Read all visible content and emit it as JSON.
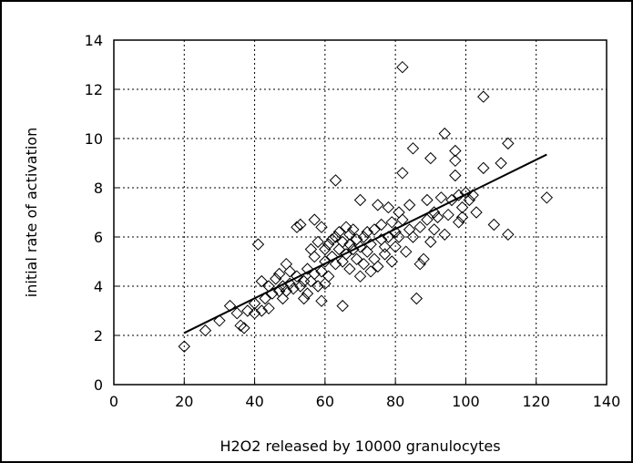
{
  "chart_data": {
    "type": "scatter",
    "title": "",
    "xlabel": "H2O2 released by 10000 granulocytes",
    "ylabel": "initial rate of activation",
    "xlim": [
      0,
      140
    ],
    "ylim": [
      0,
      14
    ],
    "xticks": [
      "0",
      "20",
      "40",
      "60",
      "80",
      "100",
      "120",
      "140"
    ],
    "yticks": [
      "0",
      "2",
      "4",
      "6",
      "8",
      "10",
      "12",
      "14"
    ],
    "grid": true,
    "legend": "none",
    "marker": "diamond",
    "colors": {
      "marker": "#000000",
      "trend": "#000000",
      "grid": "#000000"
    },
    "trendline": {
      "x": [
        20,
        123
      ],
      "y": [
        2.1,
        9.35
      ]
    },
    "points": [
      [
        20,
        1.55
      ],
      [
        26,
        2.2
      ],
      [
        30,
        2.6
      ],
      [
        33,
        3.2
      ],
      [
        35,
        2.9
      ],
      [
        36,
        2.4
      ],
      [
        37,
        2.3
      ],
      [
        38,
        3.0
      ],
      [
        40,
        2.9
      ],
      [
        40,
        3.3
      ],
      [
        41,
        5.7
      ],
      [
        42,
        3.0
      ],
      [
        42,
        4.2
      ],
      [
        43,
        3.5
      ],
      [
        44,
        3.1
      ],
      [
        44,
        4.0
      ],
      [
        45,
        3.7
      ],
      [
        46,
        4.3
      ],
      [
        47,
        3.8
      ],
      [
        47,
        4.5
      ],
      [
        48,
        4.0
      ],
      [
        48,
        3.5
      ],
      [
        49,
        4.9
      ],
      [
        49,
        3.8
      ],
      [
        50,
        4.1
      ],
      [
        50,
        4.6
      ],
      [
        51,
        3.9
      ],
      [
        52,
        4.4
      ],
      [
        52,
        6.4
      ],
      [
        53,
        6.5
      ],
      [
        53,
        4.0
      ],
      [
        54,
        3.5
      ],
      [
        54,
        4.2
      ],
      [
        55,
        4.7
      ],
      [
        55,
        3.7
      ],
      [
        56,
        5.5
      ],
      [
        56,
        4.2
      ],
      [
        57,
        6.7
      ],
      [
        57,
        5.2
      ],
      [
        57,
        4.5
      ],
      [
        58,
        5.8
      ],
      [
        58,
        4.0
      ],
      [
        59,
        6.4
      ],
      [
        59,
        4.6
      ],
      [
        59,
        3.4
      ],
      [
        60,
        5.0
      ],
      [
        60,
        4.1
      ],
      [
        60,
        5.5
      ],
      [
        61,
        5.7
      ],
      [
        61,
        4.4
      ],
      [
        62,
        5.9
      ],
      [
        62,
        5.2
      ],
      [
        63,
        8.3
      ],
      [
        63,
        6.0
      ],
      [
        63,
        4.9
      ],
      [
        64,
        5.5
      ],
      [
        64,
        6.2
      ],
      [
        65,
        5.0
      ],
      [
        65,
        5.8
      ],
      [
        65,
        3.2
      ],
      [
        66,
        6.4
      ],
      [
        66,
        5.3
      ],
      [
        67,
        5.7
      ],
      [
        67,
        4.7
      ],
      [
        67,
        6.1
      ],
      [
        68,
        5.5
      ],
      [
        68,
        6.3
      ],
      [
        69,
        5.1
      ],
      [
        69,
        5.9
      ],
      [
        70,
        7.5
      ],
      [
        70,
        5.6
      ],
      [
        70,
        4.4
      ],
      [
        71,
        6.0
      ],
      [
        71,
        4.9
      ],
      [
        72,
        5.4
      ],
      [
        72,
        6.2
      ],
      [
        73,
        4.6
      ],
      [
        73,
        5.7
      ],
      [
        74,
        6.3
      ],
      [
        74,
        5.1
      ],
      [
        75,
        7.3
      ],
      [
        75,
        4.8
      ],
      [
        76,
        5.9
      ],
      [
        76,
        6.5
      ],
      [
        77,
        5.3
      ],
      [
        77,
        5.6
      ],
      [
        78,
        6.0
      ],
      [
        78,
        7.2
      ],
      [
        79,
        6.6
      ],
      [
        79,
        5.0
      ],
      [
        80,
        6.2
      ],
      [
        80,
        5.6
      ],
      [
        81,
        7.0
      ],
      [
        81,
        6.0
      ],
      [
        82,
        12.9
      ],
      [
        82,
        8.6
      ],
      [
        82,
        6.7
      ],
      [
        83,
        5.4
      ],
      [
        84,
        6.3
      ],
      [
        84,
        7.3
      ],
      [
        85,
        9.6
      ],
      [
        85,
        6.0
      ],
      [
        86,
        3.5
      ],
      [
        87,
        4.9
      ],
      [
        87,
        6.4
      ],
      [
        88,
        5.1
      ],
      [
        89,
        7.5
      ],
      [
        89,
        6.7
      ],
      [
        90,
        9.2
      ],
      [
        90,
        5.8
      ],
      [
        91,
        6.3
      ],
      [
        91,
        7.0
      ],
      [
        92,
        6.8
      ],
      [
        93,
        7.6
      ],
      [
        94,
        10.2
      ],
      [
        94,
        6.1
      ],
      [
        95,
        6.9
      ],
      [
        96,
        7.5
      ],
      [
        97,
        9.5
      ],
      [
        97,
        8.5
      ],
      [
        97,
        9.1
      ],
      [
        98,
        6.6
      ],
      [
        98,
        7.7
      ],
      [
        99,
        7.2
      ],
      [
        99,
        6.8
      ],
      [
        100,
        7.8
      ],
      [
        101,
        7.5
      ],
      [
        102,
        7.7
      ],
      [
        103,
        7.0
      ],
      [
        105,
        11.7
      ],
      [
        105,
        8.8
      ],
      [
        108,
        6.5
      ],
      [
        110,
        9.0
      ],
      [
        112,
        9.8
      ],
      [
        112,
        6.1
      ],
      [
        123,
        7.6
      ]
    ]
  }
}
